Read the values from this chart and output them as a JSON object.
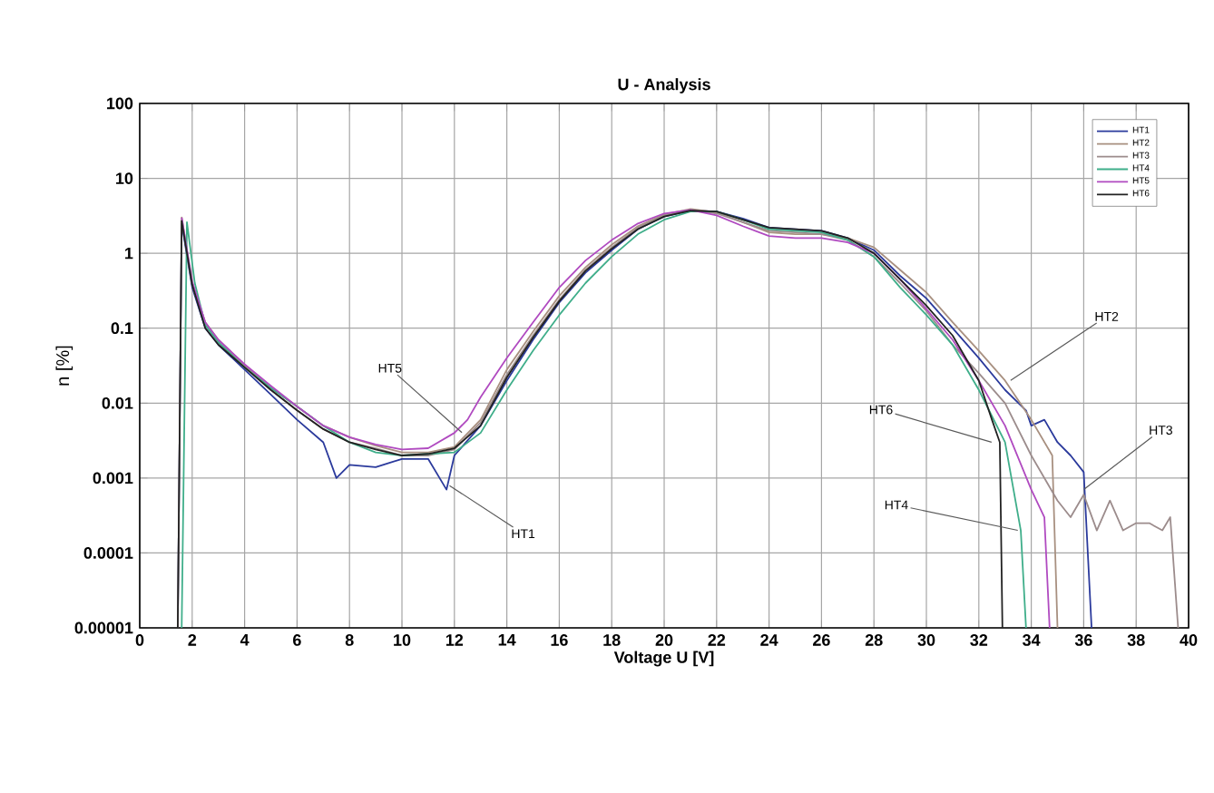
{
  "chart_data": {
    "type": "line",
    "title": "U - Analysis",
    "xlabel": "Voltage U [V]",
    "ylabel": "n [%]",
    "log": "y",
    "grid": true,
    "legend": "top right",
    "xlim": [
      0,
      40
    ],
    "xticks": [
      0,
      2,
      4,
      6,
      8,
      10,
      12,
      14,
      16,
      18,
      20,
      22,
      24,
      26,
      28,
      30,
      32,
      34,
      36,
      38,
      40
    ],
    "ylim": [
      1e-05,
      100
    ],
    "yticks": [
      100,
      10,
      1,
      0.1,
      0.01,
      0.001,
      0.0001,
      {
        "value": 1e-05,
        "label": "0.00001"
      }
    ],
    "series": [
      {
        "name": "HT1",
        "color": "#2b3a9c",
        "x": [
          1.45,
          1.6,
          2,
          2.5,
          3,
          4,
          5,
          6,
          7,
          7.5,
          8,
          9,
          10,
          11,
          11.7,
          12,
          13,
          14,
          15,
          16,
          17,
          18,
          19,
          20,
          21,
          22,
          23,
          24,
          25,
          26,
          27,
          28,
          29,
          30,
          31,
          32,
          33,
          33.8,
          34,
          34.5,
          35,
          35.5,
          36,
          36.3
        ],
        "values": [
          1e-05,
          2.5,
          0.35,
          0.1,
          0.06,
          0.028,
          0.013,
          0.006,
          0.003,
          0.001,
          0.0015,
          0.0014,
          0.0018,
          0.0018,
          0.0007,
          0.002,
          0.005,
          0.02,
          0.07,
          0.22,
          0.55,
          1.1,
          2.1,
          3.1,
          3.7,
          3.6,
          2.9,
          2.2,
          2.1,
          2,
          1.6,
          1.1,
          0.5,
          0.25,
          0.1,
          0.04,
          0.015,
          0.008,
          0.005,
          0.006,
          0.003,
          0.002,
          0.0012,
          1e-05
        ]
      },
      {
        "name": "HT2",
        "color": "#a89080",
        "x": [
          1.45,
          1.6,
          2,
          2.5,
          3,
          4,
          5,
          6,
          7,
          8,
          9,
          10,
          11,
          12,
          13,
          14,
          15,
          16,
          17,
          18,
          19,
          20,
          21,
          22,
          23,
          24,
          25,
          26,
          27,
          28,
          29,
          30,
          31,
          32,
          33,
          34,
          34.8,
          35
        ],
        "values": [
          1e-05,
          3,
          0.4,
          0.12,
          0.07,
          0.032,
          0.016,
          0.009,
          0.005,
          0.0035,
          0.0027,
          0.0022,
          0.0022,
          0.0026,
          0.006,
          0.028,
          0.09,
          0.27,
          0.65,
          1.3,
          2.3,
          3.3,
          3.9,
          3.5,
          2.6,
          1.9,
          1.8,
          1.8,
          1.6,
          1.2,
          0.6,
          0.3,
          0.12,
          0.05,
          0.02,
          0.006,
          0.002,
          1e-05
        ]
      },
      {
        "name": "HT3",
        "color": "#9c8c8c",
        "x": [
          1.6,
          2,
          2.5,
          3,
          4,
          5,
          6,
          7,
          8,
          9,
          10,
          11,
          12,
          13,
          14,
          15,
          16,
          17,
          18,
          19,
          20,
          21,
          22,
          23,
          24,
          25,
          26,
          27,
          28,
          29,
          30,
          31,
          32,
          33,
          34,
          35,
          35.5,
          36,
          36.5,
          37,
          37.5,
          38,
          38.5,
          39,
          39.3,
          39.6
        ],
        "values": [
          2.8,
          0.38,
          0.11,
          0.065,
          0.03,
          0.015,
          0.008,
          0.0045,
          0.003,
          0.0025,
          0.002,
          0.002,
          0.0024,
          0.0055,
          0.024,
          0.08,
          0.24,
          0.6,
          1.2,
          2.2,
          3.2,
          3.8,
          3.4,
          2.6,
          2,
          1.9,
          1.8,
          1.5,
          0.9,
          0.4,
          0.17,
          0.06,
          0.025,
          0.01,
          0.002,
          0.0005,
          0.0003,
          0.0006,
          0.0002,
          0.0005,
          0.0002,
          0.00025,
          0.00025,
          0.0002,
          0.0003,
          1e-05
        ]
      },
      {
        "name": "HT4",
        "color": "#3fae8a",
        "x": [
          1.6,
          1.8,
          2.1,
          2.5,
          3,
          4,
          5,
          6,
          7,
          8,
          9,
          10,
          11,
          12,
          13,
          14,
          15,
          16,
          17,
          18,
          19,
          20,
          21,
          22,
          23,
          24,
          25,
          26,
          27,
          28,
          29,
          30,
          31,
          32,
          33,
          33.6,
          33.8
        ],
        "values": [
          1e-05,
          2.6,
          0.4,
          0.11,
          0.065,
          0.03,
          0.016,
          0.009,
          0.005,
          0.003,
          0.0022,
          0.002,
          0.0021,
          0.0022,
          0.004,
          0.015,
          0.05,
          0.15,
          0.4,
          0.9,
          1.8,
          2.8,
          3.6,
          3.6,
          2.8,
          2.1,
          2,
          1.9,
          1.5,
          0.9,
          0.35,
          0.15,
          0.06,
          0.015,
          0.003,
          0.0002,
          1e-05
        ]
      },
      {
        "name": "HT5",
        "color": "#b04ac0",
        "x": [
          1.6,
          2,
          2.5,
          3,
          4,
          5,
          6,
          7,
          8,
          9,
          10,
          11,
          12,
          12.5,
          13,
          14,
          15,
          16,
          17,
          18,
          19,
          20,
          21,
          22,
          23,
          24,
          25,
          26,
          27,
          28,
          29,
          30,
          31,
          32,
          33,
          34,
          34.5,
          34.7
        ],
        "values": [
          3,
          0.42,
          0.12,
          0.07,
          0.033,
          0.017,
          0.009,
          0.005,
          0.0035,
          0.0028,
          0.0024,
          0.0025,
          0.004,
          0.006,
          0.012,
          0.04,
          0.12,
          0.35,
          0.8,
          1.5,
          2.5,
          3.4,
          3.8,
          3.2,
          2.3,
          1.7,
          1.6,
          1.6,
          1.4,
          1,
          0.45,
          0.18,
          0.07,
          0.02,
          0.005,
          0.0007,
          0.0003,
          1e-05
        ]
      },
      {
        "name": "HT6",
        "color": "#222222",
        "x": [
          1.45,
          1.6,
          2,
          2.5,
          3,
          4,
          5,
          6,
          7,
          8,
          9,
          10,
          11,
          12,
          13,
          14,
          15,
          16,
          17,
          18,
          19,
          20,
          21,
          22,
          23,
          24,
          25,
          26,
          27,
          28,
          29,
          30,
          31,
          32,
          32.5,
          32.8,
          32.9
        ],
        "values": [
          1e-05,
          2.7,
          0.38,
          0.1,
          0.06,
          0.03,
          0.015,
          0.008,
          0.0045,
          0.003,
          0.0024,
          0.002,
          0.0021,
          0.0025,
          0.005,
          0.022,
          0.075,
          0.23,
          0.58,
          1.15,
          2.1,
          3.1,
          3.7,
          3.6,
          2.8,
          2.2,
          2.1,
          2,
          1.6,
          1,
          0.45,
          0.2,
          0.08,
          0.02,
          0.006,
          0.003,
          1e-05
        ]
      }
    ],
    "annotations": [
      {
        "text": "HT5",
        "x": 12.3,
        "y": 0.004
      },
      {
        "text": "HT1",
        "x": 11.8,
        "y": 0.0008
      },
      {
        "text": "HT2",
        "x": 33.2,
        "y": 0.02
      },
      {
        "text": "HT6",
        "x": 32.5,
        "y": 0.003
      },
      {
        "text": "HT3",
        "x": 36,
        "y": 0.0007
      },
      {
        "text": "HT4",
        "x": 33.5,
        "y": 0.0002
      }
    ]
  }
}
